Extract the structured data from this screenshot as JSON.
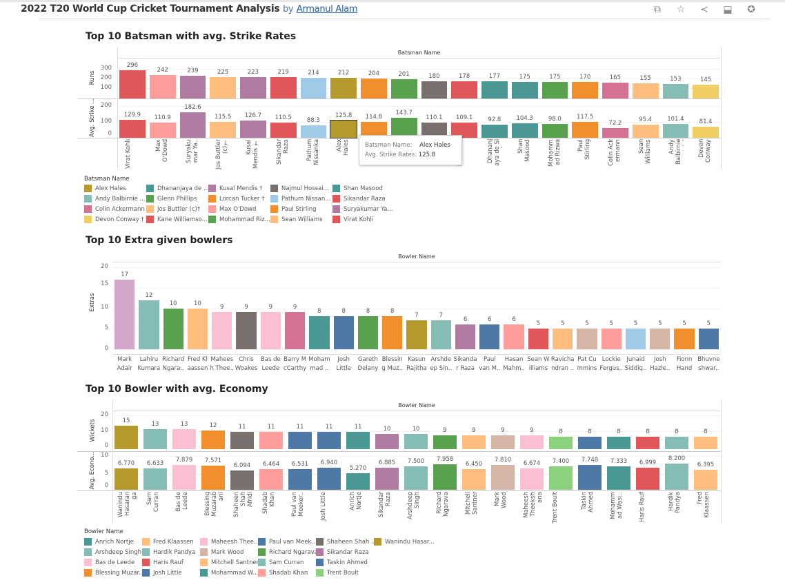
{
  "header": {
    "title": "2022 T20 World Cup Cricket Tournament Analysis",
    "by": "by",
    "author": "Armanul Alam",
    "icons": [
      "duplicate-icon",
      "star-icon",
      "share-icon",
      "download-icon",
      "badge-icon"
    ]
  },
  "batsmen": {
    "title": "Top 10 Batsman with avg. Strike Rates",
    "header": "Batsman Name",
    "runs_axis": "Runs",
    "sr_axis": "Avg. Strike ...",
    "runs_ticks": [
      "300",
      "200",
      "100"
    ],
    "sr_ticks": [
      "200",
      "100",
      "0"
    ],
    "bars": [
      {
        "name": "Virat Kohli",
        "label": "Virat Kohli",
        "runs": 296,
        "sr": 129.9,
        "color": "#e15759"
      },
      {
        "name": "Max O'Dowd",
        "label": "Max O'Dowd",
        "runs": 242,
        "sr": 110.9,
        "color": "#ff9d9a"
      },
      {
        "name": "Suryakumar Ya..",
        "label": "Suryaku mar Ya..",
        "runs": 239,
        "sr": 182.6,
        "color": "#b07aa1"
      },
      {
        "name": "Jos Buttler (c)†",
        "label": "Jos Buttler (c)†",
        "runs": 225,
        "sr": 115.5,
        "color": "#ffbe7d"
      },
      {
        "name": "Kusal Mendis †",
        "label": "Kusal Mendis †",
        "runs": 223,
        "sr": 126.7,
        "color": "#b07aa1"
      },
      {
        "name": "Sikandar Raza",
        "label": "Sikandar Raza",
        "runs": 219,
        "sr": 110.5,
        "color": "#e15759"
      },
      {
        "name": "Pathum Nissanka",
        "label": "Pathum Nissanka",
        "runs": 214,
        "sr": 88.3,
        "color": "#a0cbe8"
      },
      {
        "name": "Alex Hales",
        "label": "Alex Hales",
        "runs": 212,
        "sr": 125.8,
        "color": "#b6992d"
      },
      {
        "name": "Lorcan Tucker †",
        "label": "",
        "runs": 204,
        "sr": 114.8,
        "color": "#f28e2b"
      },
      {
        "name": "Glenn Phillips",
        "label": "",
        "runs": 201,
        "sr": 143.7,
        "color": "#59a14f"
      },
      {
        "name": "Najmul Hossai...",
        "label": "",
        "runs": 180,
        "sr": 110.1,
        "color": "#79706e"
      },
      {
        "name": "Kane Williamso...",
        "label": "iamson ..",
        "runs": 178,
        "sr": 109.1,
        "color": "#e15759"
      },
      {
        "name": "Dhananjaya de Silva",
        "label": "Dhananj aya de Si lva",
        "runs": 177,
        "sr": 92.8,
        "color": "#499894"
      },
      {
        "name": "Shan Masood",
        "label": "Shan Masood",
        "runs": 175,
        "sr": 104.3,
        "color": "#499894"
      },
      {
        "name": "Mohammad Rizwan †",
        "label": "Mohamm ad Rizwa n†",
        "runs": 175,
        "sr": 98.0,
        "color": "#59a14f"
      },
      {
        "name": "Paul Stirling",
        "label": "Paul Stirling",
        "runs": 170,
        "sr": 117.5,
        "color": "#f28e2b"
      },
      {
        "name": "Colin Ackermann",
        "label": "Colin Ack ermann",
        "runs": 165,
        "sr": 72.2,
        "color": "#d37295"
      },
      {
        "name": "Sean Williams",
        "label": "Sean Williams",
        "runs": 155,
        "sr": 95.4,
        "color": "#ffbe7d"
      },
      {
        "name": "Andy Balbirnie (c)",
        "label": "Andy Balbirnie (c)",
        "runs": 153,
        "sr": 101.4,
        "color": "#86bcb6"
      },
      {
        "name": "Devon Conway †",
        "label": "Devon Conway †",
        "runs": 145,
        "sr": 81.4,
        "color": "#f1ce63"
      }
    ],
    "tooltip": {
      "name_label": "Batsman Name:",
      "name_value": "Alex Hales",
      "sr_label": "Avg. Strike Rates:",
      "sr_value": "125.8"
    },
    "legend_title": "Batsman Name",
    "legend": [
      [
        "Alex Hales",
        "#b6992d"
      ],
      [
        "Andy Balbirnie ...",
        "#86bcb6"
      ],
      [
        "Colin Ackermann",
        "#d37295"
      ],
      [
        "Devon Conway †",
        "#f1ce63"
      ],
      [
        "Dhananjaya de ...",
        "#499894"
      ],
      [
        "Glenn Phillips",
        "#59a14f"
      ],
      [
        "Jos Buttler (c)†",
        "#ffbe7d"
      ],
      [
        "Kane Williamso...",
        "#e15759"
      ],
      [
        "Kusal Mendis †",
        "#b07aa1"
      ],
      [
        "Lorcan Tucker †",
        "#f28e2b"
      ],
      [
        "Max O'Dowd",
        "#ff9d9a"
      ],
      [
        "Mohammad Riz...",
        "#59a14f"
      ],
      [
        "Najmul Hossai...",
        "#79706e"
      ],
      [
        "Pathum Nissan...",
        "#a0cbe8"
      ],
      [
        "Paul Stirling",
        "#f28e2b"
      ],
      [
        "Sean Williams",
        "#ffbe7d"
      ],
      [
        "Shan Masood",
        "#499894"
      ],
      [
        "Sikandar Raza",
        "#e15759"
      ],
      [
        "Suryakumar Ya...",
        "#b07aa1"
      ],
      [
        "Virat Kohli",
        "#e15759"
      ]
    ]
  },
  "extras": {
    "title": "Top 10 Extra given bowlers",
    "header": "Bowler Name",
    "axis": "Extras",
    "ticks": [
      "20",
      "15",
      "10",
      "5",
      "0"
    ],
    "bars": [
      [
        "Mark Adair",
        17,
        "#d4a6c8"
      ],
      [
        "Lahiru Kumara",
        12,
        "#86bcb6"
      ],
      [
        "Richard Ngara..",
        10,
        "#59a14f"
      ],
      [
        "Fred Kl aassen",
        10,
        "#ffbe7d"
      ],
      [
        "Mahees h Thee..",
        9,
        "#fabfd2"
      ],
      [
        "Chris Woakes",
        9,
        "#79706e"
      ],
      [
        "Bas de Leede",
        9,
        "#fabfd2"
      ],
      [
        "Barry M cCarthy",
        9,
        "#d37295"
      ],
      [
        "Moham mad ..",
        8,
        "#499894"
      ],
      [
        "Josh Little",
        8,
        "#4e79a7"
      ],
      [
        "Gareth Delany",
        8,
        "#59a14f"
      ],
      [
        "Blessin g Muz..",
        8,
        "#f28e2b"
      ],
      [
        "Kasun Rajitha",
        7,
        "#b6992d"
      ],
      [
        "Arshde ep Sin..",
        7,
        "#86bcb6"
      ],
      [
        "Sikanda r Raza",
        6,
        "#b07aa1"
      ],
      [
        "Paul van M..",
        6,
        "#4e79a7"
      ],
      [
        "Hasan Mahm..",
        6,
        "#ff9d9a"
      ],
      [
        "Sean W illiams",
        5,
        "#e15759"
      ],
      [
        "Ravicha ndran ..",
        5,
        "#ffbe7d"
      ],
      [
        "Pat Cu mmins",
        5,
        "#d7b5a6"
      ],
      [
        "Lockie Fergus..",
        5,
        "#ff9d9a"
      ],
      [
        "Junaid Siddiq..",
        5,
        "#a0cbe8"
      ],
      [
        "Josh Hazle..",
        5,
        "#d7b5a6"
      ],
      [
        "Fionn Hand",
        5,
        "#f28e2b"
      ],
      [
        "Bhuvne shwar..",
        5,
        "#4e79a7"
      ]
    ]
  },
  "economy": {
    "title": "Top 10 Bowler with avg. Economy",
    "header": "Bowler Name",
    "wk_axis": "Wickets",
    "ec_axis": "Avg. Econo...",
    "wk_ticks": [
      "20",
      "10",
      "0"
    ],
    "ec_ticks": [
      "10",
      "5",
      "0"
    ],
    "bars": [
      [
        "Wanindu Hasaran ga",
        15,
        "6.770",
        "#b6992d"
      ],
      [
        "Sam Curran",
        13,
        "6.633",
        "#86bcb6"
      ],
      [
        "Bas de Leede",
        13,
        "7.879",
        "#fabfd2"
      ],
      [
        "Blessing Muzarab ani",
        12,
        "7.571",
        "#f28e2b"
      ],
      [
        "Shaheen Shah Afridi",
        11,
        "6.094",
        "#79706e"
      ],
      [
        "Shadab Khan",
        11,
        "6.464",
        "#ff9d9a"
      ],
      [
        "Paul van Meeker..",
        11,
        "6.531",
        "#4e79a7"
      ],
      [
        "Josh Little",
        11,
        "6.940",
        "#4e79a7"
      ],
      [
        "Anrich Nortje",
        11,
        "5.270",
        "#499894"
      ],
      [
        "Sikandar Raza",
        10,
        "6.885",
        "#b07aa1"
      ],
      [
        "Arshdeep Singh",
        10,
        "7.500",
        "#86bcb6"
      ],
      [
        "Richard Ngarava",
        9,
        "7.958",
        "#59a14f"
      ],
      [
        "Mitchell Santner",
        9,
        "6.450",
        "#ffbe7d"
      ],
      [
        "Mark Wood",
        9,
        "7.810",
        "#d7b5a6"
      ],
      [
        "Maheesh Theeksh ana",
        9,
        "6.674",
        "#fabfd2"
      ],
      [
        "Trent Boult",
        8,
        "7.400",
        "#8cd17d"
      ],
      [
        "Taskin Ahmed",
        8,
        "7.748",
        "#4e79a7"
      ],
      [
        "Mohamm ad Wasi..",
        8,
        "7.333",
        "#499894"
      ],
      [
        "Haris Rauf",
        8,
        "6.999",
        "#e15759"
      ],
      [
        "Hardik Pandya",
        8,
        "8.200",
        "#86bcb6"
      ],
      [
        "Fred Klaassen",
        8,
        "6.395",
        "#ffbe7d"
      ]
    ],
    "legend_title": "Bowler Name",
    "legend": [
      [
        "Anrich Nortje",
        "#499894"
      ],
      [
        "Arshdeep Singh",
        "#86bcb6"
      ],
      [
        "Bas de Leede",
        "#fabfd2"
      ],
      [
        "Blessing Muzar...",
        "#f28e2b"
      ],
      [
        "Fred Klaassen",
        "#ffbe7d"
      ],
      [
        "Hardik Pandya",
        "#86bcb6"
      ],
      [
        "Haris Rauf",
        "#e15759"
      ],
      [
        "Josh Little",
        "#4e79a7"
      ],
      [
        "Maheesh Thee...",
        "#fabfd2"
      ],
      [
        "Mark Wood",
        "#d7b5a6"
      ],
      [
        "Mitchell Santner",
        "#ffbe7d"
      ],
      [
        "Mohammad W...",
        "#499894"
      ],
      [
        "Paul van Meek...",
        "#4e79a7"
      ],
      [
        "Richard Ngarava",
        "#59a14f"
      ],
      [
        "Sam Curran",
        "#86bcb6"
      ],
      [
        "Shadab Khan",
        "#ff9d9a"
      ],
      [
        "Shaheen Shah ...",
        "#79706e"
      ],
      [
        "Sikandar Raza",
        "#b07aa1"
      ],
      [
        "Taskin Ahmed",
        "#4e79a7"
      ],
      [
        "Trent Boult",
        "#8cd17d"
      ],
      [
        "Wanindu Hasar...",
        "#b6992d"
      ]
    ]
  }
}
